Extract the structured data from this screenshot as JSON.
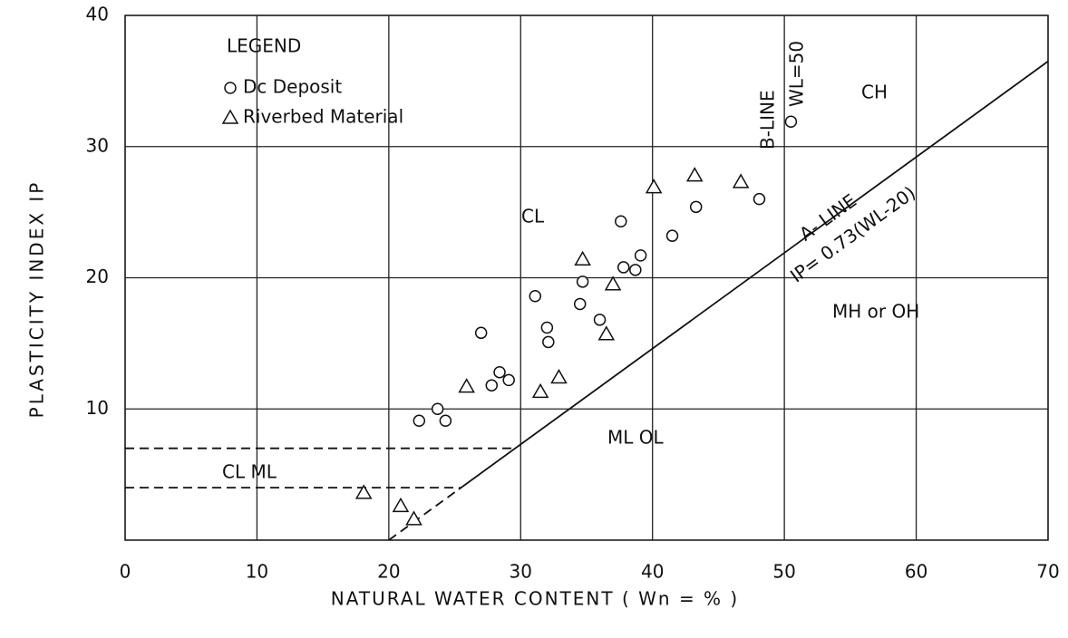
{
  "chart_data": {
    "type": "scatter",
    "xlabel": "NATURAL WATER CONTENT ( Wn = % )",
    "ylabel": "PLASTICITY INDEX IP",
    "xlim": [
      0,
      70
    ],
    "ylim": [
      0,
      40
    ],
    "xticks": [
      0,
      10,
      20,
      30,
      40,
      50,
      60,
      70
    ],
    "yticks": [
      10,
      20,
      30,
      40
    ],
    "grid": true,
    "legend_title": "LEGEND",
    "legend": "upper left",
    "series": [
      {
        "name": "Dc Deposit",
        "marker": "circle",
        "color": "#111",
        "x": [
          50.5,
          48.1,
          43.3,
          37.6,
          41.5,
          39.1,
          37.8,
          38.7,
          34.7,
          31.1,
          34.5,
          36.0,
          27.0,
          32.0,
          32.1,
          28.4,
          29.1,
          27.8,
          23.7,
          22.3,
          24.3
        ],
        "values": [
          31.9,
          26.0,
          25.4,
          24.3,
          23.2,
          21.7,
          20.8,
          20.6,
          19.7,
          18.6,
          18.0,
          16.8,
          15.8,
          16.2,
          15.1,
          12.8,
          12.2,
          11.8,
          10.0,
          9.1,
          9.1
        ]
      },
      {
        "name": "Riverbed Material",
        "marker": "triangle",
        "color": "#111",
        "x": [
          40.1,
          43.2,
          46.7,
          34.7,
          37.0,
          36.5,
          32.9,
          31.5,
          25.9,
          18.1,
          20.9,
          21.9
        ],
        "values": [
          26.9,
          27.8,
          27.3,
          21.4,
          19.5,
          15.7,
          12.4,
          11.3,
          11.7,
          3.6,
          2.6,
          1.6
        ]
      }
    ],
    "reference_lines": [
      {
        "x": [
          20,
          25.3
        ],
        "y": [
          0,
          3.87
        ],
        "dashed": true
      },
      {
        "x": [
          25.3,
          70
        ],
        "y": [
          3.87,
          36.5
        ],
        "dashed": false
      },
      {
        "x": [
          0,
          29.6
        ],
        "y": [
          7,
          7
        ],
        "dashed": true
      },
      {
        "x": [
          0,
          25.4
        ],
        "y": [
          4,
          4
        ],
        "dashed": true
      }
    ],
    "annotations": [
      "CL",
      "CL    ML",
      "ML  OL",
      "MH or OH",
      "CH",
      "B-LINE",
      "WL=50",
      "A- LINE",
      "IP= 0.73(WL-20)"
    ]
  }
}
